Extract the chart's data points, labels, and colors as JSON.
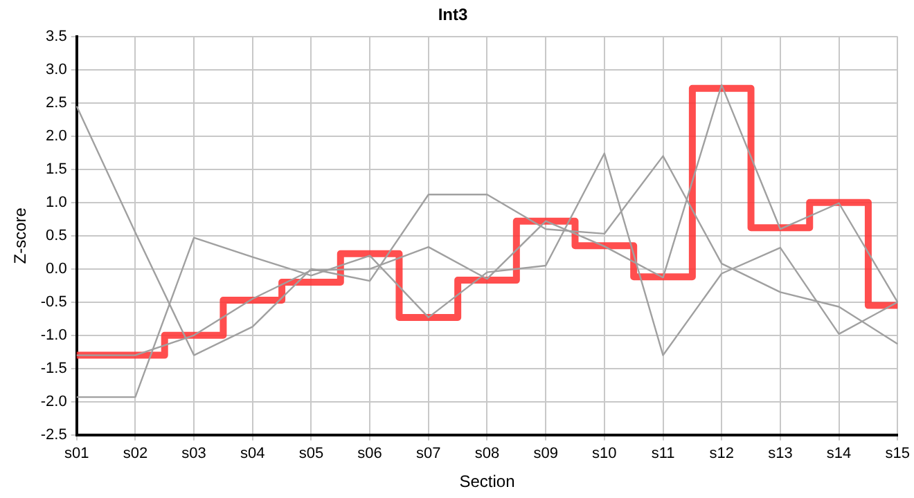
{
  "chart_data": {
    "type": "line",
    "title": "Int3",
    "xlabel": "Section",
    "ylabel": "Z-score",
    "categories": [
      "s01",
      "s02",
      "s03",
      "s04",
      "s05",
      "s06",
      "s07",
      "s08",
      "s09",
      "s10",
      "s11",
      "s12",
      "s13",
      "s14",
      "s15"
    ],
    "series": [
      {
        "color": "#a0a0a0",
        "values": [
          2.45,
          0.55,
          -1.3,
          -0.87,
          0.0,
          -0.18,
          1.12,
          1.12,
          0.6,
          0.53,
          1.7,
          0.08,
          -0.35,
          -0.57,
          -1.13
        ]
      },
      {
        "color": "#a0a0a0",
        "values": [
          -1.93,
          -1.93,
          0.47,
          0.18,
          -0.1,
          0.2,
          -0.73,
          -0.05,
          0.05,
          1.74,
          -1.3,
          -0.07,
          0.32,
          -0.98,
          -0.5
        ]
      },
      {
        "color": "#a0a0a0",
        "values": [
          -1.3,
          -1.3,
          -1.0,
          -0.45,
          -0.02,
          0.0,
          0.33,
          -0.15,
          0.72,
          0.34,
          -0.13,
          2.77,
          0.6,
          0.99,
          -0.5
        ]
      },
      {
        "type": "step",
        "color": "#ff3333",
        "values": [
          -1.3,
          -1.3,
          -1.0,
          -0.47,
          -0.2,
          0.23,
          -0.73,
          -0.17,
          0.72,
          0.35,
          -0.12,
          2.72,
          0.62,
          1.0,
          -0.55
        ]
      }
    ],
    "ylim": [
      -2.5,
      3.5
    ],
    "yticks": [
      -2.5,
      {
        "value": -2.0,
        "label": "-2.0"
      },
      -1.5,
      {
        "value": -1.0,
        "label": "-1.0"
      },
      -0.5,
      {
        "value": 0,
        "label": "0.0"
      },
      0.5,
      {
        "value": 1.0,
        "label": "1.0"
      },
      1.5,
      {
        "value": 2.0,
        "label": "2.0"
      },
      2.5,
      {
        "value": 3.0,
        "label": "3.0"
      },
      3.5
    ],
    "grid": true,
    "legend": false,
    "marker": "none",
    "line_style": "solid"
  }
}
